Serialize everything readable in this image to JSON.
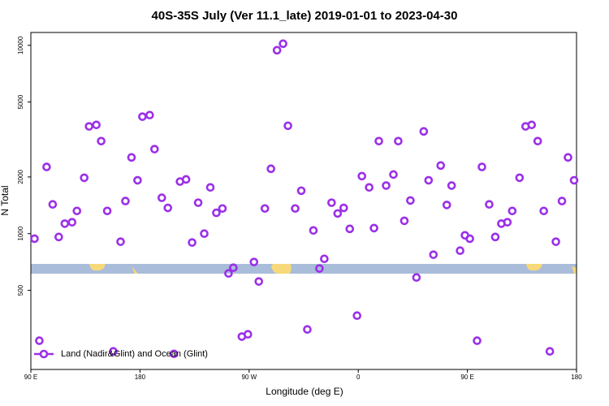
{
  "chart_data": {
    "type": "scatter",
    "title": "40S-35S July (Ver 11.1_late)   2019-01-01 to 2023-04-30",
    "x_label": "Longitude (deg E)",
    "y_label": "N Total",
    "xlim": [
      90,
      540
    ],
    "ylim": [
      190,
      11700
    ],
    "log_y": true,
    "legend": "bottom-left",
    "xticks": [
      {
        "value": 90,
        "label": "90 E"
      },
      180,
      {
        "value": 270,
        "label": "90 W"
      },
      {
        "value": 360,
        "label": "0"
      },
      {
        "value": 450,
        "label": "90 E"
      },
      {
        "value": 540,
        "label": "180"
      }
    ],
    "yticks": [
      500,
      1000,
      2000,
      5000,
      10000
    ],
    "series": [
      {
        "name": "Land (Nadir&Glint) and Ocean (Glint)",
        "color": "#9b30e8",
        "x": [
          93,
          97,
          103,
          108,
          113,
          118,
          124,
          128,
          134,
          138,
          144,
          148,
          153,
          158,
          164,
          168,
          173,
          178,
          182,
          188,
          192,
          198,
          203,
          208,
          213,
          218,
          223,
          228,
          233,
          238,
          243,
          248,
          253,
          257,
          264,
          269,
          274,
          278,
          283,
          288,
          293,
          298,
          302,
          308,
          313,
          318,
          323,
          328,
          332,
          338,
          343,
          348,
          353,
          359,
          363,
          369,
          373,
          377,
          383,
          389,
          393,
          398,
          403,
          408,
          414,
          418,
          422,
          428,
          433,
          437,
          444,
          448,
          452,
          458,
          462,
          468,
          473,
          478,
          483,
          487,
          493,
          498,
          503,
          508,
          513,
          518,
          523,
          528,
          533,
          538
        ],
        "values": [
          940,
          270,
          2260,
          1430,
          960,
          1130,
          1150,
          1320,
          1980,
          3710,
          3780,
          3100,
          1320,
          237,
          906,
          1490,
          2540,
          1920,
          4180,
          4260,
          2810,
          1550,
          1370,
          230,
          1890,
          1940,
          897,
          1460,
          1000,
          1760,
          1290,
          1360,
          615,
          659,
          284,
          292,
          707,
          557,
          1360,
          2210,
          9420,
          10200,
          3740,
          1360,
          1690,
          310,
          1040,
          653,
          735,
          1460,
          1280,
          1370,
          1060,
          367,
          2020,
          1760,
          1070,
          3100,
          1800,
          2060,
          3100,
          1170,
          1500,
          585,
          3490,
          1920,
          773,
          2300,
          1420,
          1800,
          812,
          980,
          940,
          270,
          2260,
          1430,
          960,
          1130,
          1150,
          1320,
          1980,
          3710,
          3780,
          3100,
          1320,
          237,
          906,
          1490,
          2540,
          1920
        ]
      }
    ]
  }
}
